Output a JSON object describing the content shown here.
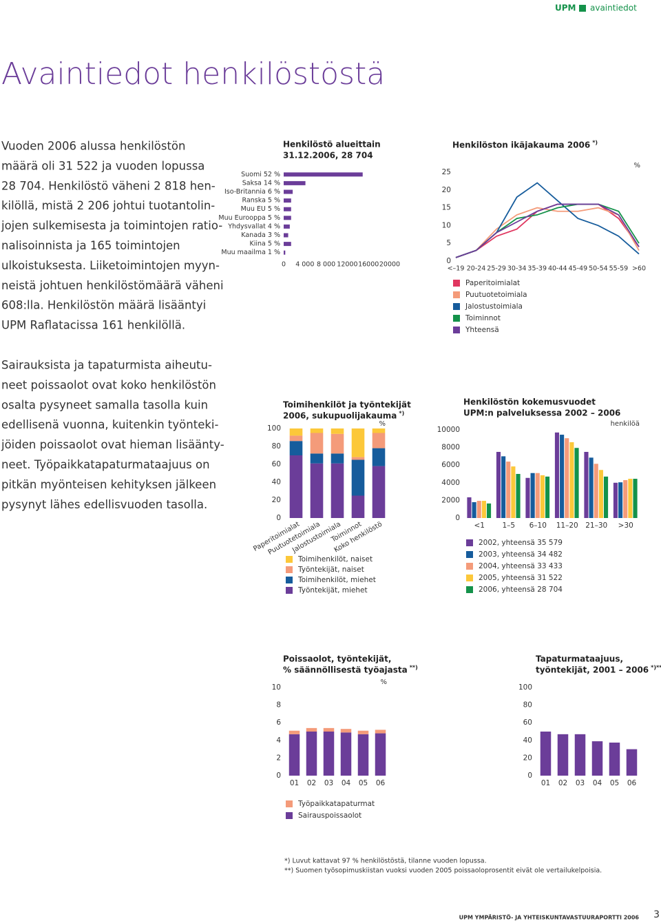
{
  "header": {
    "brand": "UPM",
    "section": "avaintiedot"
  },
  "title": "Avaintiedot henkilöstöstä",
  "paragraphs": [
    [
      "Vuoden 2006 alussa henkilöstön",
      "määrä oli 31 522 ja vuoden lopussa",
      "28 704. Henkilöstö väheni 2 818 hen-",
      "kilöllä, mistä 2 206 johtui tuotantolin-",
      "jojen sulkemisesta ja toimintojen ratio-",
      "nalisoinnista ja 165 toimintojen",
      "ulkoistuksesta. Liiketoimintojen myyn-",
      "neistä johtuen henkilöstömäärä väheni",
      "608:lla. Henkilöstön määrä lisääntyi",
      "UPM Raflatacissa 161 henkilöllä."
    ],
    [
      "Sairauksista ja tapaturmista aiheutu-",
      "neet poissaolot ovat koko henkilöstön",
      "osalta pysyneet samalla tasolla kuin",
      "edellisenä vuonna, kuitenkin työnteki-",
      "jöiden poissaolot ovat hieman lisäänty-",
      "neet. Työpaikkatapaturmataajuus on",
      "pitkän myönteisen kehityksen jälkeen",
      "pysynyt lähes edellisvuoden tasolla."
    ]
  ],
  "chart_data": [
    {
      "type": "hbar",
      "title": "Henkilöstö alueittain",
      "subtitle": "31.12.2006, 28 704",
      "categories": [
        "Suomi 52 %",
        "Saksa 14 %",
        "Iso-Britannia 6 %",
        "Ranska 5 %",
        "Muu EU 5 %",
        "Muu Eurooppa 5 %",
        "Yhdysvallat 4 %",
        "Kanada 3 %",
        "Kiina  5 %",
        "Muu maailma 1 %"
      ],
      "values": [
        14900,
        4100,
        1700,
        1400,
        1400,
        1400,
        1150,
        850,
        1400,
        300
      ],
      "color": "#6b3d99",
      "xlim": [
        0,
        20000
      ],
      "xticks": [
        0,
        {
          "value": 4000,
          "label": "4 000"
        },
        {
          "value": 8000,
          "label": "8 000"
        },
        12000,
        16000,
        20000
      ]
    },
    {
      "type": "line",
      "title": "Henkilöston ikäjakauma 2006",
      "title_note": "*)",
      "y_unit": "%",
      "categories": [
        "<–19",
        "20-24",
        "25-29",
        "30-34",
        "35-39",
        "40-44",
        "45-49",
        "50-54",
        "55-59",
        ">60"
      ],
      "series": [
        {
          "name": "Paperitoimialat",
          "color": "#e03760",
          "values": [
            1,
            3,
            7,
            9,
            14,
            16,
            16,
            16,
            12,
            4
          ]
        },
        {
          "name": "Puutuotetoimiala",
          "color": "#f49b7a",
          "values": [
            1,
            3,
            9,
            13,
            15,
            14,
            14,
            15,
            13,
            3
          ]
        },
        {
          "name": "Jalostustoimiala",
          "color": "#165c9c",
          "values": [
            1,
            3,
            8,
            18,
            22,
            17,
            12,
            10,
            7,
            2
          ]
        },
        {
          "name": "Toiminnot",
          "color": "#14924a",
          "values": [
            1,
            3,
            8,
            12,
            13,
            15,
            16,
            16,
            14,
            5
          ]
        },
        {
          "name": "Yhteensä",
          "color": "#6b3d99",
          "values": [
            1,
            3,
            8,
            11,
            14,
            16,
            16,
            16,
            13,
            4
          ]
        }
      ],
      "ylim": [
        0,
        25
      ],
      "yticks": [
        0,
        5,
        10,
        15,
        20,
        25
      ]
    },
    {
      "type": "stacked",
      "title": "Toimihenkilöt ja työntekijät",
      "subtitle": "2006, sukupuolijakauma",
      "title_note": "*)",
      "y_unit": "%",
      "categories": [
        "Paperitoimialat",
        "Puutuotetoimiala",
        "Jalostustoimiala",
        "Toiminnot",
        "Koko henkilöstö"
      ],
      "series": [
        {
          "name": "Työntekijät, miehet",
          "color": "#6b3d99",
          "values": [
            70,
            61,
            61,
            25,
            58
          ]
        },
        {
          "name": "Toimihenkilöt, miehet",
          "color": "#165c9c",
          "values": [
            16,
            11,
            11,
            40,
            20
          ]
        },
        {
          "name": "Työntekijät, naiset",
          "color": "#f49b7a",
          "values": [
            6,
            23,
            22,
            3,
            17
          ]
        },
        {
          "name": "Toimihenkilöt, naiset",
          "color": "#fcc83a",
          "values": [
            8,
            5,
            6,
            32,
            5
          ]
        }
      ],
      "ylim": [
        0,
        100
      ],
      "yticks": [
        0,
        20,
        40,
        60,
        80,
        100
      ]
    },
    {
      "type": "grouped",
      "title": "Henkilöstön kokemusvuodet",
      "subtitle": "UPM:n palveluksessa 2002 – 2006",
      "y_unit": "henkilöä",
      "categories": [
        "<1",
        "1–5",
        "6–10",
        "11–20",
        "21–30",
        ">30"
      ],
      "series": [
        {
          "name": "2002, yhteensä 35 579",
          "color": "#6b3d99",
          "values": [
            2350,
            7500,
            4550,
            9700,
            7500,
            4000
          ]
        },
        {
          "name": "2003, yhteensä 34 482",
          "color": "#165c9c",
          "values": [
            1800,
            7000,
            5100,
            9450,
            6850,
            4050
          ]
        },
        {
          "name": "2004, yhteensä 33 433",
          "color": "#f49b7a",
          "values": [
            1950,
            6400,
            5100,
            9050,
            6150,
            4300
          ]
        },
        {
          "name": "2005, yhteensä 31 522",
          "color": "#fcc83a",
          "values": [
            1950,
            5850,
            4850,
            8600,
            5450,
            4450
          ]
        },
        {
          "name": "2006, yhteensä 28 704",
          "color": "#14924a",
          "values": [
            1650,
            5000,
            4700,
            7950,
            4700,
            4450
          ]
        }
      ],
      "ylim": [
        0,
        10000
      ],
      "yticks": [
        0,
        2000,
        4000,
        6000,
        8000,
        10000
      ]
    },
    {
      "type": "stacked",
      "title": "Poissaolot, työntekijät,",
      "subtitle": "% säännöllisestä työajasta",
      "title_note": "**)",
      "y_unit": "%",
      "categories": [
        "01",
        "02",
        "03",
        "04",
        "05",
        "06"
      ],
      "series": [
        {
          "name": "Sairauspoissaolot",
          "color": "#6b3d99",
          "values": [
            4.7,
            5.0,
            5.0,
            4.9,
            4.7,
            4.8
          ]
        },
        {
          "name": "Työpaikkatapaturmat",
          "color": "#f49b7a",
          "values": [
            0.4,
            0.4,
            0.4,
            0.4,
            0.4,
            0.4
          ]
        }
      ],
      "ylim": [
        0,
        10
      ],
      "yticks": [
        0,
        2,
        4,
        6,
        8,
        10
      ]
    },
    {
      "type": "bar",
      "title": "Tapaturmataajuus,",
      "subtitle": "työntekijät, 2001 – 2006",
      "title_note": "*)**)",
      "categories": [
        "01",
        "02",
        "03",
        "04",
        "05",
        "06"
      ],
      "values": [
        50,
        47,
        47,
        39,
        37.5,
        30
      ],
      "color": "#6b3d99",
      "ylim": [
        0,
        100
      ],
      "yticks": [
        0,
        20,
        40,
        60,
        80,
        100
      ]
    }
  ],
  "footnotes": [
    "*)  Luvut kattavat 97 % henkilöstöstä, tilanne vuoden lopussa.",
    "**) Suomen työsopimuskiistan vuoksi vuoden 2005 poissaoloprosentit eivät ole vertailukelpoisia."
  ],
  "footer": {
    "publication": "UPM YMPÄRISTÖ- JA YHTEISKUNTAVASTUURAPORTTI 2006",
    "page": "3"
  }
}
